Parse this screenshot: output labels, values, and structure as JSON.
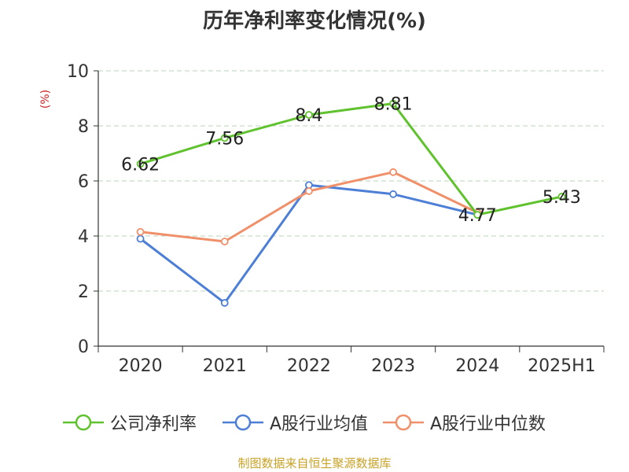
{
  "chart_data": {
    "type": "line",
    "title": "历年净利率变化情况(%)",
    "ylabel": "(%)",
    "xlabel": "",
    "ylim": [
      0,
      10
    ],
    "yticks": [
      0,
      2,
      4,
      6,
      8,
      10
    ],
    "grid": true,
    "categories": [
      "2020",
      "2021",
      "2022",
      "2023",
      "2024",
      "2025H1"
    ],
    "series": [
      {
        "name": "公司净利率",
        "color": "#5fc22e",
        "values": [
          6.62,
          7.56,
          8.4,
          8.81,
          4.77,
          5.43
        ],
        "labels": [
          "6.62",
          "7.56",
          "8.4",
          "8.81",
          "4.77",
          "5.43"
        ]
      },
      {
        "name": "A股行业均值",
        "color": "#4e7fd6",
        "values": [
          3.9,
          1.57,
          5.85,
          5.52,
          4.77,
          null
        ]
      },
      {
        "name": "A股行业中位数",
        "color": "#f0906a",
        "values": [
          4.15,
          3.8,
          5.63,
          6.32,
          4.85,
          null
        ]
      }
    ],
    "legend_position": "bottom"
  },
  "source": "制图数据来自恒生聚源数据库"
}
